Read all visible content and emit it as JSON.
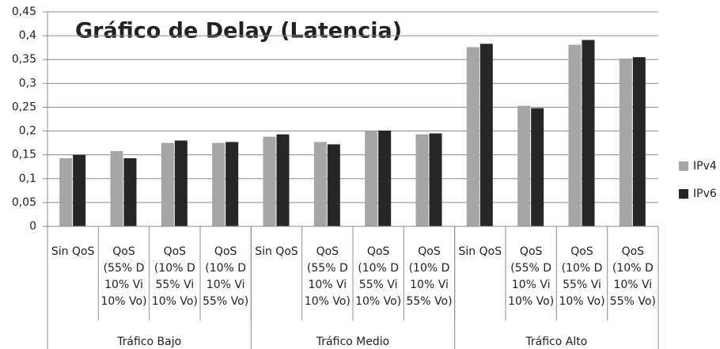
{
  "chart_data": {
    "type": "bar",
    "title": "Gráfico de Delay (Latencia)",
    "categories": [
      [
        "Sin QoS"
      ],
      [
        "QoS",
        "(55% D",
        "10% Vi",
        "10% Vo)"
      ],
      [
        "QoS",
        "(10% D",
        "55% Vi",
        "10% Vo)"
      ],
      [
        "QoS",
        "(10% D",
        "10% Vi",
        "55% Vo)"
      ],
      [
        "Sin QoS"
      ],
      [
        "QoS",
        "(55% D",
        "10% Vi",
        "10% Vo)"
      ],
      [
        "QoS",
        "(10% D",
        "55% Vi",
        "10% Vo)"
      ],
      [
        "QoS",
        "(10% D",
        "10% Vi",
        "55% Vo)"
      ],
      [
        "Sin QoS"
      ],
      [
        "QoS",
        "(55% D",
        "10% Vi",
        "10% Vo)"
      ],
      [
        "QoS",
        "(10% D",
        "55% Vi",
        "10% Vo)"
      ],
      [
        "QoS",
        "(10% D",
        "10% Vi",
        "55% Vo)"
      ]
    ],
    "groups": [
      "Tráfico Bajo",
      "Tráfico Medio",
      "Tráfico Alto"
    ],
    "series": [
      {
        "name": "IPv4",
        "color": "#a6a6a6",
        "values": [
          0.143,
          0.158,
          0.175,
          0.175,
          0.188,
          0.177,
          0.2,
          0.193,
          0.376,
          0.253,
          0.381,
          0.352
        ]
      },
      {
        "name": "IPv6",
        "color": "#262626",
        "values": [
          0.15,
          0.143,
          0.18,
          0.177,
          0.193,
          0.172,
          0.201,
          0.195,
          0.383,
          0.248,
          0.391,
          0.355
        ]
      }
    ],
    "ylim": [
      0,
      0.45
    ],
    "yticks": [
      0,
      {
        "value": 0.05,
        "label": "0,05"
      },
      {
        "value": 0.1,
        "label": "0,1"
      },
      {
        "value": 0.15,
        "label": "0,15"
      },
      {
        "value": 0.2,
        "label": "0,2"
      },
      {
        "value": 0.25,
        "label": "0,25"
      },
      {
        "value": 0.3,
        "label": "0,3"
      },
      {
        "value": 0.35,
        "label": "0,35"
      },
      {
        "value": 0.4,
        "label": "0,4"
      },
      {
        "value": 0.45,
        "label": "0,45"
      }
    ],
    "grid": true,
    "legend": "right"
  }
}
